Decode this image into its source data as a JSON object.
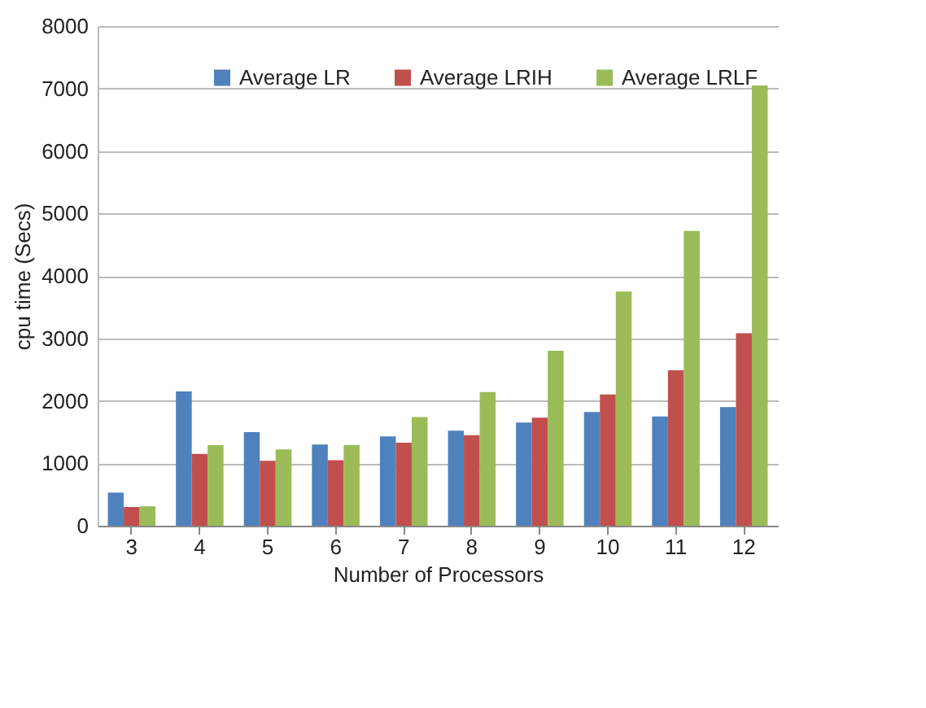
{
  "chart_data": {
    "type": "bar",
    "xlabel": "Number of Processors",
    "ylabel": "cpu time (Secs)",
    "categories": [
      "3",
      "4",
      "5",
      "6",
      "7",
      "8",
      "9",
      "10",
      "11",
      "12"
    ],
    "series": [
      {
        "name": "Average LR",
        "color": "#4f81bd",
        "values": [
          530,
          2150,
          1500,
          1300,
          1430,
          1520,
          1650,
          1820,
          1750,
          1900
        ]
      },
      {
        "name": "Average LRIH",
        "color": "#c0504d",
        "values": [
          300,
          1150,
          1040,
          1050,
          1330,
          1450,
          1730,
          2100,
          2490,
          3080
        ]
      },
      {
        "name": "Average LRLF",
        "color": "#9bbb59",
        "values": [
          310,
          1290,
          1220,
          1290,
          1740,
          2140,
          2800,
          3750,
          4720,
          7050
        ]
      }
    ],
    "ylim": [
      0,
      8000
    ],
    "yticks": [
      0,
      1000,
      2000,
      3000,
      4000,
      5000,
      6000,
      7000,
      8000
    ],
    "grid": "y",
    "legend": "top"
  }
}
